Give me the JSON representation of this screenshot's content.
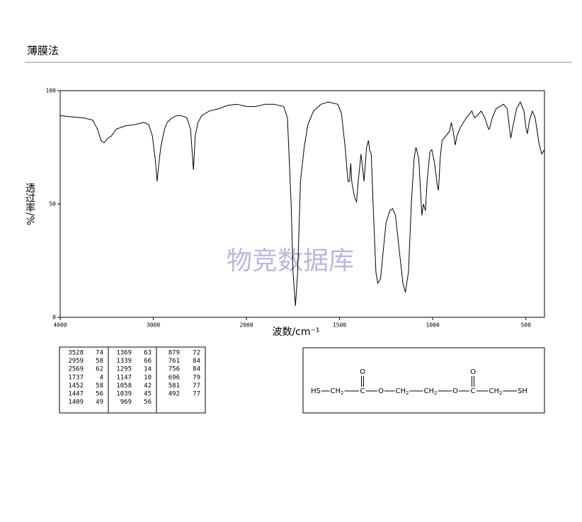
{
  "header": {
    "title": "薄膜法"
  },
  "chart_data": {
    "type": "line",
    "ylabel": "透过率/%",
    "xlabel": "波数/cm⁻¹",
    "watermark": "物竞数据库",
    "xlim": [
      4000,
      400
    ],
    "xscale_break": 2000,
    "xticks": [
      4000,
      3000,
      2000,
      1500,
      1000,
      500
    ],
    "ylim": [
      0,
      100
    ],
    "yticks": [
      0,
      50,
      100
    ],
    "color": "#000000",
    "x": [
      4000,
      3900,
      3750,
      3650,
      3600,
      3560,
      3528,
      3490,
      3450,
      3400,
      3300,
      3200,
      3100,
      3050,
      3010,
      2980,
      2959,
      2940,
      2920,
      2880,
      2850,
      2800,
      2750,
      2700,
      2640,
      2600,
      2569,
      2550,
      2520,
      2480,
      2400,
      2300,
      2200,
      2100,
      2000,
      1950,
      1900,
      1850,
      1800,
      1780,
      1760,
      1750,
      1737,
      1725,
      1710,
      1690,
      1670,
      1640,
      1600,
      1560,
      1510,
      1490,
      1470,
      1455,
      1447,
      1440,
      1435,
      1420,
      1409,
      1400,
      1385,
      1375,
      1369,
      1355,
      1345,
      1339,
      1330,
      1320,
      1305,
      1295,
      1280,
      1265,
      1250,
      1230,
      1215,
      1200,
      1180,
      1160,
      1147,
      1130,
      1115,
      1100,
      1090,
      1075,
      1065,
      1058,
      1050,
      1039,
      1030,
      1015,
      1005,
      990,
      975,
      969,
      960,
      950,
      930,
      910,
      900,
      890,
      879,
      870,
      850,
      820,
      790,
      775,
      761,
      740,
      720,
      700,
      696,
      680,
      660,
      620,
      600,
      590,
      581,
      570,
      550,
      530,
      510,
      500,
      492,
      480,
      465,
      450,
      430,
      415,
      400
    ],
    "values": [
      89,
      88.5,
      88,
      87,
      83,
      78,
      77,
      79,
      80,
      83,
      84.5,
      85,
      86,
      85,
      80,
      70,
      60,
      68,
      75,
      83,
      86,
      88,
      89,
      89,
      88,
      83,
      65,
      80,
      86,
      89,
      91,
      92,
      93.5,
      94,
      93,
      93,
      94,
      94,
      93,
      88,
      50,
      20,
      5,
      20,
      60,
      75,
      85,
      91,
      94,
      95,
      94,
      90,
      75,
      60,
      60,
      68,
      60,
      53,
      51,
      60,
      72,
      65,
      60,
      75,
      78,
      74,
      72,
      50,
      20,
      15,
      17,
      30,
      42,
      47,
      48,
      45,
      30,
      15,
      11,
      20,
      50,
      70,
      75,
      70,
      55,
      45,
      50,
      47,
      60,
      73,
      74,
      68,
      58,
      56,
      70,
      78,
      80,
      82,
      86,
      82,
      76,
      80,
      84,
      88,
      91,
      88,
      89,
      91,
      88,
      83,
      83,
      88,
      92,
      94,
      92,
      85,
      79,
      84,
      92,
      95,
      91,
      84,
      81,
      87,
      91,
      88,
      77,
      72,
      74
    ]
  },
  "peak_table": [
    [
      [
        "3528",
        "74"
      ],
      [
        "2959",
        "58"
      ],
      [
        "2569",
        "62"
      ],
      [
        "1737",
        "4"
      ],
      [
        "1452",
        "58"
      ],
      [
        "1447",
        "56"
      ],
      [
        "1409",
        "49"
      ]
    ],
    [
      [
        "1369",
        "63"
      ],
      [
        "1339",
        "66"
      ],
      [
        "1295",
        "14"
      ],
      [
        "1147",
        "10"
      ],
      [
        "1058",
        "42"
      ],
      [
        "1039",
        "45"
      ],
      [
        "969",
        "56"
      ]
    ],
    [
      [
        "879",
        "72"
      ],
      [
        "761",
        "84"
      ],
      [
        "756",
        "84"
      ],
      [
        "696",
        "79"
      ],
      [
        "581",
        "77"
      ],
      [
        "492",
        "77"
      ]
    ]
  ],
  "structure": {
    "groups": [
      {
        "text": "HS"
      },
      {
        "text": "CH",
        "sub": "2"
      },
      {
        "text": "C",
        "carbonyl": "O"
      },
      {
        "text": "O"
      },
      {
        "text": "CH",
        "sub": "2"
      },
      {
        "text": "CH",
        "sub": "2"
      },
      {
        "text": "O"
      },
      {
        "text": "C",
        "carbonyl": "O"
      },
      {
        "text": "CH",
        "sub": "2"
      },
      {
        "text": "SH"
      }
    ]
  }
}
